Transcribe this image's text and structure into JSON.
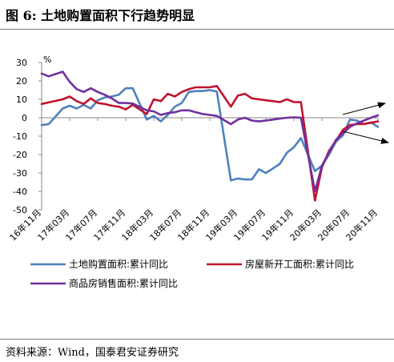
{
  "figure": {
    "title": "图 6:  土地购置面积下行趋势明显",
    "source": "资料来源：Wind，国泰君安证券研究"
  },
  "chart_data": {
    "type": "line",
    "unit_label": "%",
    "ylim": [
      -50,
      30
    ],
    "yticks": [
      30,
      20,
      10,
      0,
      -10,
      -20,
      -30,
      -40,
      -50
    ],
    "xlim": [
      "2016-11",
      "2020-11"
    ],
    "xtick_labels": [
      "16年11月",
      "17年03月",
      "17年07月",
      "17年11月",
      "18年03月",
      "18年07月",
      "18年11月",
      "19年03月",
      "19年07月",
      "19年11月",
      "20年03月",
      "20年07月",
      "20年11月"
    ],
    "grid": false,
    "legend_position": "bottom",
    "series": [
      {
        "name": "土地购置面积:累计同比",
        "color": "#4f81bd",
        "points": [
          [
            "2016-11",
            -4
          ],
          [
            "2016-12",
            -3.5
          ],
          [
            "2017-02",
            5
          ],
          [
            "2017-03",
            6.5
          ],
          [
            "2017-04",
            5
          ],
          [
            "2017-05",
            7
          ],
          [
            "2017-06",
            5
          ],
          [
            "2017-07",
            9.5
          ],
          [
            "2017-08",
            11
          ],
          [
            "2017-09",
            11.5
          ],
          [
            "2017-10",
            12.5
          ],
          [
            "2017-11",
            16
          ],
          [
            "2017-12",
            16
          ],
          [
            "2018-02",
            -1
          ],
          [
            "2018-03",
            1
          ],
          [
            "2018-04",
            -2
          ],
          [
            "2018-05",
            1.5
          ],
          [
            "2018-06",
            6
          ],
          [
            "2018-07",
            8
          ],
          [
            "2018-08",
            14
          ],
          [
            "2018-09",
            14.5
          ],
          [
            "2018-10",
            14.5
          ],
          [
            "2018-11",
            15
          ],
          [
            "2018-12",
            14.2
          ],
          [
            "2019-02",
            -34
          ],
          [
            "2019-03",
            -33
          ],
          [
            "2019-04",
            -33.5
          ],
          [
            "2019-05",
            -33.5
          ],
          [
            "2019-06",
            -28
          ],
          [
            "2019-07",
            -30
          ],
          [
            "2019-08",
            -27.5
          ],
          [
            "2019-09",
            -25
          ],
          [
            "2019-10",
            -19
          ],
          [
            "2019-11",
            -16
          ],
          [
            "2019-12",
            -11
          ],
          [
            "2020-02",
            -29
          ],
          [
            "2020-03",
            -26
          ],
          [
            "2020-04",
            -20
          ],
          [
            "2020-05",
            -13
          ],
          [
            "2020-06",
            -9.5
          ],
          [
            "2020-07",
            -1
          ],
          [
            "2020-08",
            -1.5
          ],
          [
            "2020-09",
            -3.5
          ],
          [
            "2020-10",
            -2.5
          ],
          [
            "2020-11",
            -5
          ]
        ]
      },
      {
        "name": "房屋新开工面积:累计同比",
        "color": "#c0142e",
        "points": [
          [
            "2016-11",
            7.5
          ],
          [
            "2017-02",
            10
          ],
          [
            "2017-03",
            11.5
          ],
          [
            "2017-04",
            9
          ],
          [
            "2017-05",
            7.5
          ],
          [
            "2017-06",
            10.5
          ],
          [
            "2017-07",
            8
          ],
          [
            "2017-08",
            7.5
          ],
          [
            "2017-09",
            6.5
          ],
          [
            "2017-10",
            6
          ],
          [
            "2017-11",
            4.5
          ],
          [
            "2017-12",
            7
          ],
          [
            "2018-02",
            2
          ],
          [
            "2018-03",
            10
          ],
          [
            "2018-04",
            9
          ],
          [
            "2018-05",
            13
          ],
          [
            "2018-06",
            11.5
          ],
          [
            "2018-07",
            14
          ],
          [
            "2018-08",
            15.5
          ],
          [
            "2018-09",
            16.5
          ],
          [
            "2018-10",
            16.5
          ],
          [
            "2018-11",
            16.5
          ],
          [
            "2018-12",
            17.2
          ],
          [
            "2019-02",
            6
          ],
          [
            "2019-03",
            12
          ],
          [
            "2019-04",
            13
          ],
          [
            "2019-05",
            10.5
          ],
          [
            "2019-06",
            10
          ],
          [
            "2019-07",
            9.5
          ],
          [
            "2019-08",
            9
          ],
          [
            "2019-09",
            8.5
          ],
          [
            "2019-10",
            10
          ],
          [
            "2019-11",
            8.5
          ],
          [
            "2019-12",
            8.5
          ],
          [
            "2020-02",
            -44.9
          ],
          [
            "2020-03",
            -27
          ],
          [
            "2020-04",
            -18
          ],
          [
            "2020-05",
            -12.5
          ],
          [
            "2020-06",
            -6.5
          ],
          [
            "2020-07",
            -4
          ],
          [
            "2020-08",
            -3.5
          ],
          [
            "2020-09",
            -3.4
          ],
          [
            "2020-10",
            -2.7
          ],
          [
            "2020-11",
            -2
          ]
        ]
      },
      {
        "name": "商品房销售面积:累计同比",
        "color": "#7030a0",
        "points": [
          [
            "2016-11",
            24
          ],
          [
            "2016-12",
            22.5
          ],
          [
            "2017-02",
            25
          ],
          [
            "2017-03",
            19.5
          ],
          [
            "2017-04",
            15.5
          ],
          [
            "2017-05",
            14
          ],
          [
            "2017-06",
            16
          ],
          [
            "2017-07",
            14
          ],
          [
            "2017-08",
            12.5
          ],
          [
            "2017-09",
            10.5
          ],
          [
            "2017-10",
            8
          ],
          [
            "2017-11",
            8
          ],
          [
            "2017-12",
            7.7
          ],
          [
            "2018-02",
            4
          ],
          [
            "2018-03",
            3.5
          ],
          [
            "2018-04",
            1.5
          ],
          [
            "2018-05",
            2.5
          ],
          [
            "2018-06",
            3
          ],
          [
            "2018-07",
            4
          ],
          [
            "2018-08",
            4
          ],
          [
            "2018-09",
            3
          ],
          [
            "2018-10",
            2
          ],
          [
            "2018-11",
            1.5
          ],
          [
            "2018-12",
            1
          ],
          [
            "2019-02",
            -3.5
          ],
          [
            "2019-03",
            -1
          ],
          [
            "2019-04",
            0
          ],
          [
            "2019-05",
            -1.5
          ],
          [
            "2019-06",
            -2
          ],
          [
            "2019-07",
            -1.5
          ],
          [
            "2019-08",
            -1
          ],
          [
            "2019-09",
            -0.5
          ],
          [
            "2019-10",
            0
          ],
          [
            "2019-11",
            0.2
          ],
          [
            "2019-12",
            0
          ],
          [
            "2020-02",
            -39.9
          ],
          [
            "2020-03",
            -26
          ],
          [
            "2020-04",
            -19
          ],
          [
            "2020-05",
            -12
          ],
          [
            "2020-06",
            -8.5
          ],
          [
            "2020-07",
            -5
          ],
          [
            "2020-08",
            -3
          ],
          [
            "2020-09",
            -1.5
          ],
          [
            "2020-10",
            0
          ],
          [
            "2020-11",
            1.3
          ]
        ]
      }
    ]
  }
}
